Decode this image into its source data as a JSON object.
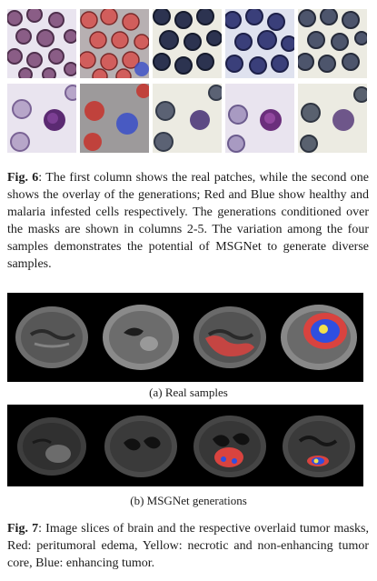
{
  "fig6": {
    "label": "Fig. 6",
    "text": ": The first column shows the real patches, while the second one shows the overlay of the generations; Red and Blue show healthy and malaria infested cells respectively. The generations conditioned over the masks are shown in columns 2-5. The variation among the four samples demonstrates the potential of MSGNet to generate diverse samples."
  },
  "fig7": {
    "subcaption_a": "(a) Real samples",
    "subcaption_b": "(b) MSGNet generations",
    "label": "Fig. 7",
    "text": ": Image slices of brain and the respective overlaid tumor masks, Red: peritumoral edema, Yellow: necrotic and non-enhancing tumor core, Blue: enhancing tumor."
  },
  "colors": {
    "healthy_overlay": "#d9433f",
    "infected_overlay": "#3a4fc9",
    "edema": "#e8453c",
    "necrotic_core": "#f2e14a",
    "enhancing_tumor": "#2f4fe0"
  }
}
